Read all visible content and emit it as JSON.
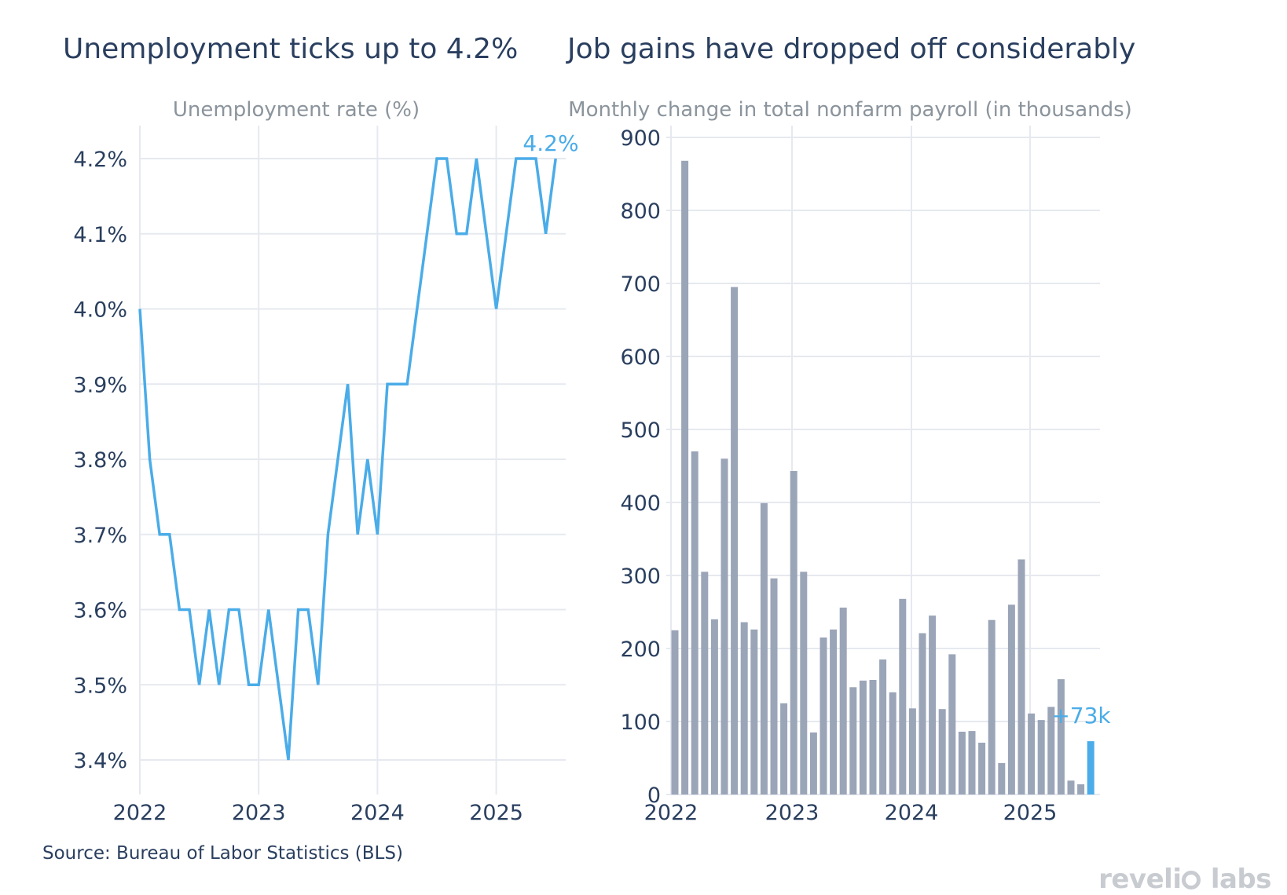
{
  "headlines": {
    "left": "Unemployment ticks up to 4.2%",
    "right": "Job gains have dropped off considerably"
  },
  "source": "Source: Bureau of Labor Statistics (BLS)",
  "logo": {
    "part1": "reveli",
    "part2": "labs"
  },
  "colors": {
    "line": "#4aace8",
    "bar": "#9ba5b8",
    "highlight": "#4aace8",
    "grid": "#e6e9ef",
    "text": "#2a3f5f",
    "subtitle": "#8b949c"
  },
  "chart_data": [
    {
      "type": "line",
      "title": "Unemployment rate (%)",
      "x_ticks": [
        "2022",
        "2023",
        "2024",
        "2025"
      ],
      "x_start": "2022-01",
      "y_ticks": [
        "3.4%",
        "3.5%",
        "3.6%",
        "3.7%",
        "3.8%",
        "3.9%",
        "4.0%",
        "4.1%",
        "4.2%"
      ],
      "ylim": [
        3.35,
        4.22
      ],
      "grid": true,
      "annotation": "4.2%",
      "series": [
        {
          "values": [
            4.0,
            3.8,
            3.7,
            3.7,
            3.6,
            3.6,
            3.5,
            3.6,
            3.5,
            3.6,
            3.6,
            3.5,
            3.5,
            3.6,
            3.5,
            3.4,
            3.6,
            3.6,
            3.5,
            3.7,
            3.8,
            3.9,
            3.7,
            3.8,
            3.7,
            3.9,
            3.9,
            3.9,
            4.0,
            4.1,
            4.2,
            4.2,
            4.1,
            4.1,
            4.2,
            4.1,
            4.0,
            4.1,
            4.2,
            4.2,
            4.2,
            4.1,
            4.2
          ]
        }
      ]
    },
    {
      "type": "bar",
      "title": "Monthly change in total nonfarm payroll (in thousands)",
      "x_ticks": [
        "2022",
        "2023",
        "2024",
        "2025"
      ],
      "x_start": "2022-01",
      "y_ticks": [
        "0",
        "100",
        "200",
        "300",
        "400",
        "500",
        "600",
        "700",
        "800",
        "900"
      ],
      "ylim": [
        0,
        900
      ],
      "grid": true,
      "annotation": "+73k",
      "series": [
        {
          "values": [
            225,
            868,
            470,
            305,
            240,
            460,
            695,
            236,
            226,
            399,
            296,
            125,
            443,
            305,
            85,
            215,
            226,
            256,
            147,
            156,
            157,
            185,
            140,
            268,
            118,
            221,
            245,
            117,
            192,
            86,
            87,
            71,
            239,
            43,
            260,
            322,
            111,
            102,
            120,
            158,
            19,
            14,
            73
          ]
        }
      ]
    }
  ]
}
